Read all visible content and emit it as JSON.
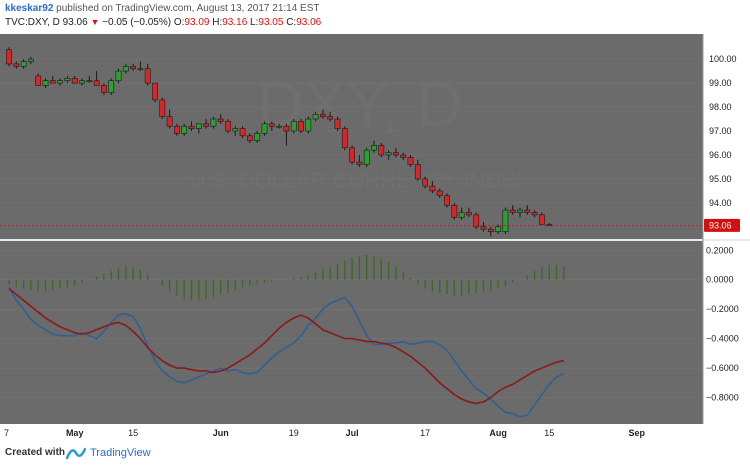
{
  "header": {
    "user": "kkeskar92",
    "published_text": "published on TradingView.com, August 13, 2017 21:14 EST",
    "symbol": "TVC:DXY, D",
    "last": "93.06",
    "change": "−0.05 (−0.05%)",
    "o_label": "O:",
    "o_value": "93.09",
    "h_label": "H:",
    "h_value": "93.16",
    "l_label": "L:",
    "l_value": "93.05",
    "c_label": "C:",
    "c_value": "93.06"
  },
  "watermark": {
    "symbol": "DXY, D",
    "name": "U.S. DOLLAR CURRENCY INDEX"
  },
  "footer": {
    "created_with": "Created with",
    "brand": "TradingView"
  },
  "colors": {
    "background": "#6b6b6b",
    "up": "#2ca02c",
    "down": "#d62728",
    "histogram": "#3d6b1e",
    "macd_line": "#2f5f93",
    "signal_line": "#8a1a1a",
    "price_tag": "#d11111"
  },
  "chart_data": [
    {
      "type": "candlestick",
      "ylim": [
        92.45,
        101.05
      ],
      "yticks": [
        "100.00",
        "99.00",
        "98.00",
        "97.00",
        "96.00",
        "95.00",
        "94.00"
      ],
      "last_price_label": "93.06",
      "x_labels": [
        "7",
        "May",
        "15",
        "Jun",
        "19",
        "Jul",
        "17",
        "Aug",
        "15",
        "Sep"
      ],
      "x_label_bold": [
        "May",
        "Jun",
        "Jul",
        "Aug",
        "Sep"
      ],
      "candles": [
        {
          "o": 100.4,
          "h": 100.5,
          "l": 99.7,
          "c": 99.8
        },
        {
          "o": 99.8,
          "h": 99.9,
          "l": 99.6,
          "c": 99.7
        },
        {
          "o": 99.7,
          "h": 100.0,
          "l": 99.6,
          "c": 99.9
        },
        {
          "o": 99.9,
          "h": 100.1,
          "l": 99.8,
          "c": 100.0
        },
        {
          "o": 99.3,
          "h": 99.4,
          "l": 98.9,
          "c": 98.9
        },
        {
          "o": 98.9,
          "h": 99.2,
          "l": 98.8,
          "c": 99.1
        },
        {
          "o": 99.1,
          "h": 99.3,
          "l": 99.0,
          "c": 99.0
        },
        {
          "o": 99.0,
          "h": 99.2,
          "l": 98.9,
          "c": 99.1
        },
        {
          "o": 99.1,
          "h": 99.3,
          "l": 99.0,
          "c": 99.2
        },
        {
          "o": 99.2,
          "h": 99.3,
          "l": 99.0,
          "c": 99.0
        },
        {
          "o": 99.0,
          "h": 99.2,
          "l": 98.9,
          "c": 99.1
        },
        {
          "o": 99.1,
          "h": 99.3,
          "l": 99.0,
          "c": 99.1
        },
        {
          "o": 99.1,
          "h": 99.5,
          "l": 98.9,
          "c": 98.9
        },
        {
          "o": 98.9,
          "h": 99.0,
          "l": 98.5,
          "c": 98.6
        },
        {
          "o": 98.6,
          "h": 99.2,
          "l": 98.5,
          "c": 99.1
        },
        {
          "o": 99.1,
          "h": 99.6,
          "l": 99.0,
          "c": 99.5
        },
        {
          "o": 99.5,
          "h": 99.8,
          "l": 99.4,
          "c": 99.7
        },
        {
          "o": 99.7,
          "h": 99.8,
          "l": 99.5,
          "c": 99.6
        },
        {
          "o": 99.6,
          "h": 99.9,
          "l": 99.5,
          "c": 99.6
        },
        {
          "o": 99.6,
          "h": 99.8,
          "l": 98.9,
          "c": 99.0
        },
        {
          "o": 99.0,
          "h": 99.0,
          "l": 98.2,
          "c": 98.3
        },
        {
          "o": 98.3,
          "h": 98.4,
          "l": 97.5,
          "c": 97.6
        },
        {
          "o": 97.6,
          "h": 97.9,
          "l": 97.1,
          "c": 97.2
        },
        {
          "o": 97.2,
          "h": 97.3,
          "l": 96.8,
          "c": 96.9
        },
        {
          "o": 96.9,
          "h": 97.3,
          "l": 96.8,
          "c": 97.2
        },
        {
          "o": 97.2,
          "h": 97.4,
          "l": 97.0,
          "c": 97.1
        },
        {
          "o": 97.1,
          "h": 97.3,
          "l": 96.9,
          "c": 97.3
        },
        {
          "o": 97.3,
          "h": 97.5,
          "l": 97.1,
          "c": 97.2
        },
        {
          "o": 97.2,
          "h": 97.6,
          "l": 97.1,
          "c": 97.5
        },
        {
          "o": 97.5,
          "h": 97.7,
          "l": 97.3,
          "c": 97.4
        },
        {
          "o": 97.4,
          "h": 97.5,
          "l": 96.9,
          "c": 97.0
        },
        {
          "o": 97.0,
          "h": 97.2,
          "l": 96.8,
          "c": 97.1
        },
        {
          "o": 97.1,
          "h": 97.2,
          "l": 96.7,
          "c": 96.8
        },
        {
          "o": 96.8,
          "h": 96.9,
          "l": 96.5,
          "c": 96.6
        },
        {
          "o": 96.6,
          "h": 97.0,
          "l": 96.5,
          "c": 96.9
        },
        {
          "o": 96.9,
          "h": 97.4,
          "l": 96.8,
          "c": 97.3
        },
        {
          "o": 97.3,
          "h": 97.4,
          "l": 97.0,
          "c": 97.2
        },
        {
          "o": 97.2,
          "h": 97.3,
          "l": 97.1,
          "c": 97.2
        },
        {
          "o": 97.2,
          "h": 97.3,
          "l": 96.4,
          "c": 97.0
        },
        {
          "o": 97.0,
          "h": 97.5,
          "l": 96.9,
          "c": 97.4
        },
        {
          "o": 97.4,
          "h": 97.5,
          "l": 96.9,
          "c": 97.0
        },
        {
          "o": 97.0,
          "h": 97.6,
          "l": 96.9,
          "c": 97.5
        },
        {
          "o": 97.5,
          "h": 97.8,
          "l": 97.4,
          "c": 97.7
        },
        {
          "o": 97.7,
          "h": 97.9,
          "l": 97.5,
          "c": 97.6
        },
        {
          "o": 97.6,
          "h": 97.8,
          "l": 97.4,
          "c": 97.5
        },
        {
          "o": 97.5,
          "h": 97.6,
          "l": 97.0,
          "c": 97.1
        },
        {
          "o": 97.1,
          "h": 97.2,
          "l": 96.2,
          "c": 96.3
        },
        {
          "o": 96.3,
          "h": 96.4,
          "l": 95.6,
          "c": 95.7
        },
        {
          "o": 95.7,
          "h": 96.0,
          "l": 95.5,
          "c": 95.6
        },
        {
          "o": 95.6,
          "h": 96.3,
          "l": 95.5,
          "c": 96.2
        },
        {
          "o": 96.2,
          "h": 96.6,
          "l": 96.1,
          "c": 96.4
        },
        {
          "o": 96.4,
          "h": 96.5,
          "l": 95.9,
          "c": 96.0
        },
        {
          "o": 96.0,
          "h": 96.2,
          "l": 95.8,
          "c": 96.1
        },
        {
          "o": 96.1,
          "h": 96.3,
          "l": 95.9,
          "c": 96.0
        },
        {
          "o": 96.0,
          "h": 96.1,
          "l": 95.8,
          "c": 95.9
        },
        {
          "o": 95.9,
          "h": 96.0,
          "l": 95.5,
          "c": 95.6
        },
        {
          "o": 95.6,
          "h": 95.8,
          "l": 94.9,
          "c": 95.0
        },
        {
          "o": 95.0,
          "h": 95.1,
          "l": 94.6,
          "c": 94.7
        },
        {
          "o": 94.7,
          "h": 94.9,
          "l": 94.4,
          "c": 94.5
        },
        {
          "o": 94.5,
          "h": 94.6,
          "l": 94.2,
          "c": 94.3
        },
        {
          "o": 94.3,
          "h": 94.4,
          "l": 93.8,
          "c": 93.9
        },
        {
          "o": 93.9,
          "h": 94.0,
          "l": 93.3,
          "c": 93.4
        },
        {
          "o": 93.4,
          "h": 93.8,
          "l": 93.3,
          "c": 93.6
        },
        {
          "o": 93.6,
          "h": 93.8,
          "l": 93.4,
          "c": 93.5
        },
        {
          "o": 93.5,
          "h": 93.6,
          "l": 92.9,
          "c": 93.0
        },
        {
          "o": 93.0,
          "h": 93.2,
          "l": 92.8,
          "c": 92.9
        },
        {
          "o": 92.9,
          "h": 93.0,
          "l": 92.6,
          "c": 92.8
        },
        {
          "o": 92.8,
          "h": 93.1,
          "l": 92.7,
          "c": 93.0
        },
        {
          "o": 92.8,
          "h": 93.8,
          "l": 92.7,
          "c": 93.7
        },
        {
          "o": 93.7,
          "h": 93.9,
          "l": 93.5,
          "c": 93.6
        },
        {
          "o": 93.6,
          "h": 93.8,
          "l": 93.4,
          "c": 93.7
        },
        {
          "o": 93.7,
          "h": 93.9,
          "l": 93.5,
          "c": 93.6
        },
        {
          "o": 93.6,
          "h": 93.7,
          "l": 93.4,
          "c": 93.5
        },
        {
          "o": 93.5,
          "h": 93.6,
          "l": 93.1,
          "c": 93.1
        },
        {
          "o": 93.09,
          "h": 93.16,
          "l": 93.05,
          "c": 93.06
        }
      ]
    },
    {
      "type": "macd",
      "ylim": [
        -0.98,
        0.27
      ],
      "yticks": [
        "0.2000",
        "0.0000",
        "−0.2000",
        "−0.4000",
        "−0.6000",
        "−0.8000"
      ],
      "histogram": [
        -0.03,
        -0.05,
        -0.06,
        -0.07,
        -0.08,
        -0.08,
        -0.07,
        -0.06,
        -0.05,
        -0.04,
        -0.02,
        0.0,
        0.02,
        0.04,
        0.06,
        0.08,
        0.1,
        0.09,
        0.07,
        0.04,
        0.0,
        -0.04,
        -0.08,
        -0.11,
        -0.13,
        -0.14,
        -0.14,
        -0.13,
        -0.12,
        -0.1,
        -0.09,
        -0.07,
        -0.05,
        -0.04,
        -0.03,
        -0.02,
        -0.01,
        0.0,
        0.0,
        0.01,
        0.02,
        0.03,
        0.05,
        0.07,
        0.09,
        0.11,
        0.13,
        0.15,
        0.16,
        0.17,
        0.16,
        0.14,
        0.12,
        0.09,
        0.05,
        0.01,
        -0.03,
        -0.06,
        -0.08,
        -0.09,
        -0.1,
        -0.11,
        -0.11,
        -0.1,
        -0.09,
        -0.08,
        -0.07,
        -0.06,
        -0.04,
        -0.02,
        0.0,
        0.03,
        0.06,
        0.09,
        0.1,
        0.1,
        0.09
      ],
      "macd": [
        -0.05,
        -0.14,
        -0.2,
        -0.27,
        -0.31,
        -0.34,
        -0.37,
        -0.38,
        -0.38,
        -0.38,
        -0.36,
        -0.38,
        -0.4,
        -0.35,
        -0.29,
        -0.24,
        -0.23,
        -0.25,
        -0.33,
        -0.45,
        -0.55,
        -0.62,
        -0.66,
        -0.69,
        -0.7,
        -0.68,
        -0.66,
        -0.64,
        -0.62,
        -0.6,
        -0.62,
        -0.61,
        -0.63,
        -0.64,
        -0.63,
        -0.58,
        -0.53,
        -0.49,
        -0.46,
        -0.43,
        -0.38,
        -0.31,
        -0.26,
        -0.2,
        -0.16,
        -0.14,
        -0.12,
        -0.18,
        -0.28,
        -0.38,
        -0.44,
        -0.44,
        -0.43,
        -0.43,
        -0.42,
        -0.44,
        -0.43,
        -0.42,
        -0.42,
        -0.44,
        -0.48,
        -0.55,
        -0.62,
        -0.68,
        -0.74,
        -0.77,
        -0.81,
        -0.86,
        -0.9,
        -0.91,
        -0.93,
        -0.92,
        -0.85,
        -0.78,
        -0.71,
        -0.66,
        -0.64
      ],
      "signal": [
        -0.06,
        -0.1,
        -0.14,
        -0.18,
        -0.22,
        -0.26,
        -0.29,
        -0.32,
        -0.34,
        -0.36,
        -0.37,
        -0.36,
        -0.34,
        -0.32,
        -0.3,
        -0.29,
        -0.31,
        -0.35,
        -0.4,
        -0.46,
        -0.51,
        -0.55,
        -0.58,
        -0.6,
        -0.6,
        -0.61,
        -0.62,
        -0.62,
        -0.63,
        -0.62,
        -0.6,
        -0.57,
        -0.54,
        -0.51,
        -0.47,
        -0.43,
        -0.38,
        -0.33,
        -0.29,
        -0.26,
        -0.24,
        -0.26,
        -0.3,
        -0.34,
        -0.36,
        -0.38,
        -0.4,
        -0.4,
        -0.41,
        -0.42,
        -0.42,
        -0.43,
        -0.44,
        -0.46,
        -0.49,
        -0.52,
        -0.56,
        -0.6,
        -0.65,
        -0.7,
        -0.74,
        -0.78,
        -0.81,
        -0.83,
        -0.84,
        -0.83,
        -0.8,
        -0.76,
        -0.73,
        -0.71,
        -0.68,
        -0.65,
        -0.62,
        -0.6,
        -0.58,
        -0.56,
        -0.55
      ]
    }
  ]
}
